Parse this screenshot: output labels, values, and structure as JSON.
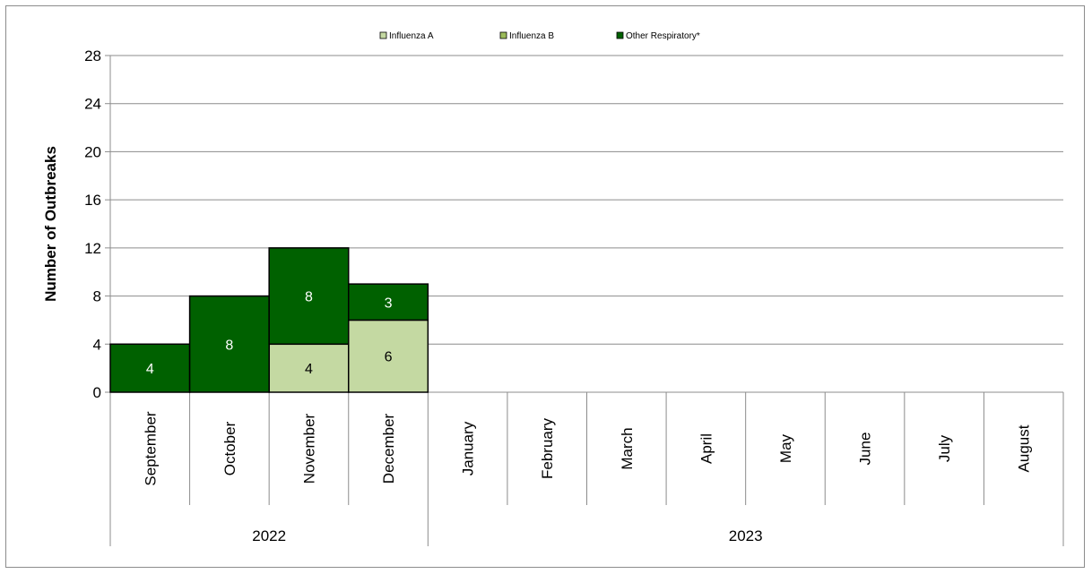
{
  "chart_data": {
    "type": "bar",
    "stacked": true,
    "ylabel": "Number of Outbreaks",
    "xlabel": "",
    "ylim": [
      0,
      28
    ],
    "yticks": [
      0,
      4,
      8,
      12,
      16,
      20,
      24,
      28
    ],
    "grid": true,
    "legend_position": "top",
    "categories": [
      "September",
      "October",
      "November",
      "December",
      "January",
      "February",
      "March",
      "April",
      "May",
      "June",
      "July",
      "August"
    ],
    "groups": [
      {
        "label": "2022",
        "categories": [
          "September",
          "October",
          "November",
          "December"
        ]
      },
      {
        "label": "2023",
        "categories": [
          "January",
          "February",
          "March",
          "April",
          "May",
          "June",
          "July",
          "August"
        ]
      }
    ],
    "series": [
      {
        "name": "Influenza A",
        "color": "#c4d9a2",
        "label_color": "#000000",
        "values": [
          0,
          0,
          4,
          6,
          0,
          0,
          0,
          0,
          0,
          0,
          0,
          0
        ]
      },
      {
        "name": "Influenza B",
        "color": "#9bbb59",
        "label_color": "#000000",
        "values": [
          0,
          0,
          0,
          0,
          0,
          0,
          0,
          0,
          0,
          0,
          0,
          0
        ]
      },
      {
        "name": "Other Respiratory*",
        "color": "#006100",
        "label_color": "#ffffff",
        "values": [
          4,
          8,
          8,
          3,
          0,
          0,
          0,
          0,
          0,
          0,
          0,
          0
        ]
      }
    ]
  }
}
